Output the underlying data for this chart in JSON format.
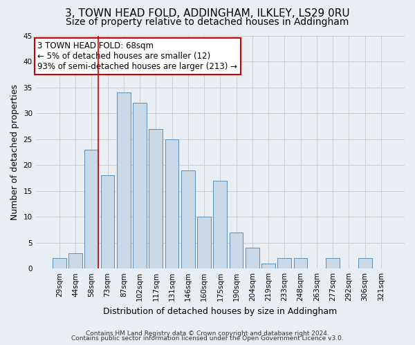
{
  "title": "3, TOWN HEAD FOLD, ADDINGHAM, ILKLEY, LS29 0RU",
  "subtitle": "Size of property relative to detached houses in Addingham",
  "xlabel": "Distribution of detached houses by size in Addingham",
  "ylabel": "Number of detached properties",
  "categories": [
    "29sqm",
    "44sqm",
    "58sqm",
    "73sqm",
    "87sqm",
    "102sqm",
    "117sqm",
    "131sqm",
    "146sqm",
    "160sqm",
    "175sqm",
    "190sqm",
    "204sqm",
    "219sqm",
    "233sqm",
    "248sqm",
    "263sqm",
    "277sqm",
    "292sqm",
    "306sqm",
    "321sqm"
  ],
  "bar_heights": [
    2,
    3,
    23,
    18,
    34,
    32,
    27,
    25,
    19,
    10,
    17,
    7,
    4,
    1,
    2,
    2,
    0,
    2,
    0,
    2,
    0
  ],
  "bar_color": "#c9d9e8",
  "bar_edge_color": "#5b8db8",
  "grid_color": "#cccccc",
  "background_color": "#e8eef4",
  "annotation_line1": "3 TOWN HEAD FOLD: 68sqm",
  "annotation_line2": "← 5% of detached houses are smaller (12)",
  "annotation_line3": "93% of semi-detached houses are larger (213) →",
  "annotation_box_color": "#ffffff",
  "annotation_box_edge_color": "#cc0000",
  "red_line_bin_index": 2,
  "ylim": [
    0,
    45
  ],
  "yticks": [
    0,
    5,
    10,
    15,
    20,
    25,
    30,
    35,
    40,
    45
  ],
  "footer_line1": "Contains HM Land Registry data © Crown copyright and database right 2024.",
  "footer_line2": "Contains public sector information licensed under the Open Government Licence v3.0.",
  "title_fontsize": 11,
  "subtitle_fontsize": 10,
  "tick_fontsize": 7.5,
  "ylabel_fontsize": 9,
  "xlabel_fontsize": 9,
  "annotation_fontsize": 8.5,
  "footer_fontsize": 6.5
}
